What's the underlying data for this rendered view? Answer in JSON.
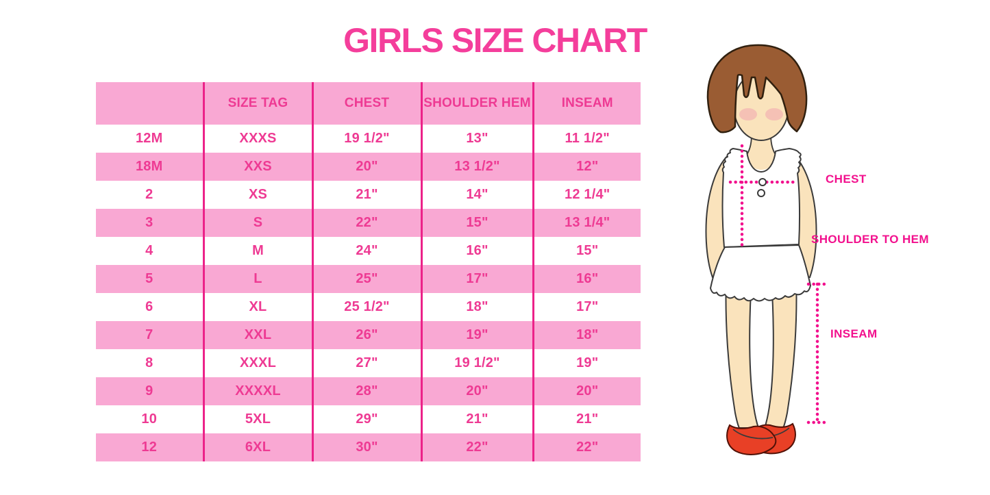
{
  "title": "GIRLS SIZE CHART",
  "chart_data": {
    "type": "table",
    "title": "GIRLS SIZE CHART",
    "columns": [
      "",
      "SIZE TAG",
      "CHEST",
      "SHOULDER HEM",
      "INSEAM"
    ],
    "rows": [
      [
        "12M",
        "XXXS",
        "19 1/2\"",
        "13\"",
        "11 1/2\""
      ],
      [
        "18M",
        "XXS",
        "20\"",
        "13 1/2\"",
        "12\""
      ],
      [
        "2",
        "XS",
        "21\"",
        "14\"",
        "12 1/4\""
      ],
      [
        "3",
        "S",
        "22\"",
        "15\"",
        "13 1/4\""
      ],
      [
        "4",
        "M",
        "24\"",
        "16\"",
        "15\""
      ],
      [
        "5",
        "L",
        "25\"",
        "17\"",
        "16\""
      ],
      [
        "6",
        "XL",
        "25 1/2\"",
        "18\"",
        "17\""
      ],
      [
        "7",
        "XXL",
        "26\"",
        "19\"",
        "18\""
      ],
      [
        "8",
        "XXXL",
        "27\"",
        "19 1/2\"",
        "19\""
      ],
      [
        "9",
        "XXXXL",
        "28\"",
        "20\"",
        "20\""
      ],
      [
        "10",
        "5XL",
        "29\"",
        "21\"",
        "21\""
      ],
      [
        "12",
        "6XL",
        "30\"",
        "22\"",
        "22\""
      ]
    ],
    "layout_hints": {
      "header_background": "pink",
      "row_shading": "alternating white and pink, first data row white",
      "grid": "vertical magenta column separators only, no outer border"
    }
  },
  "figure": {
    "labels": {
      "chest": "CHEST",
      "shoulder_to_hem": "SHOULDER TO HEM",
      "inseam": "INSEAM"
    }
  },
  "colors": {
    "title_pink": "#F43E9B",
    "table_text_pink": "#EE3A93",
    "row_pink": "#F9A8D3",
    "grid_magenta": "#EC2289",
    "label_pink": "#F2108D",
    "hair_brown": "#9A5C33",
    "skin": "#FAE3BC",
    "shoe_red": "#E84026"
  }
}
